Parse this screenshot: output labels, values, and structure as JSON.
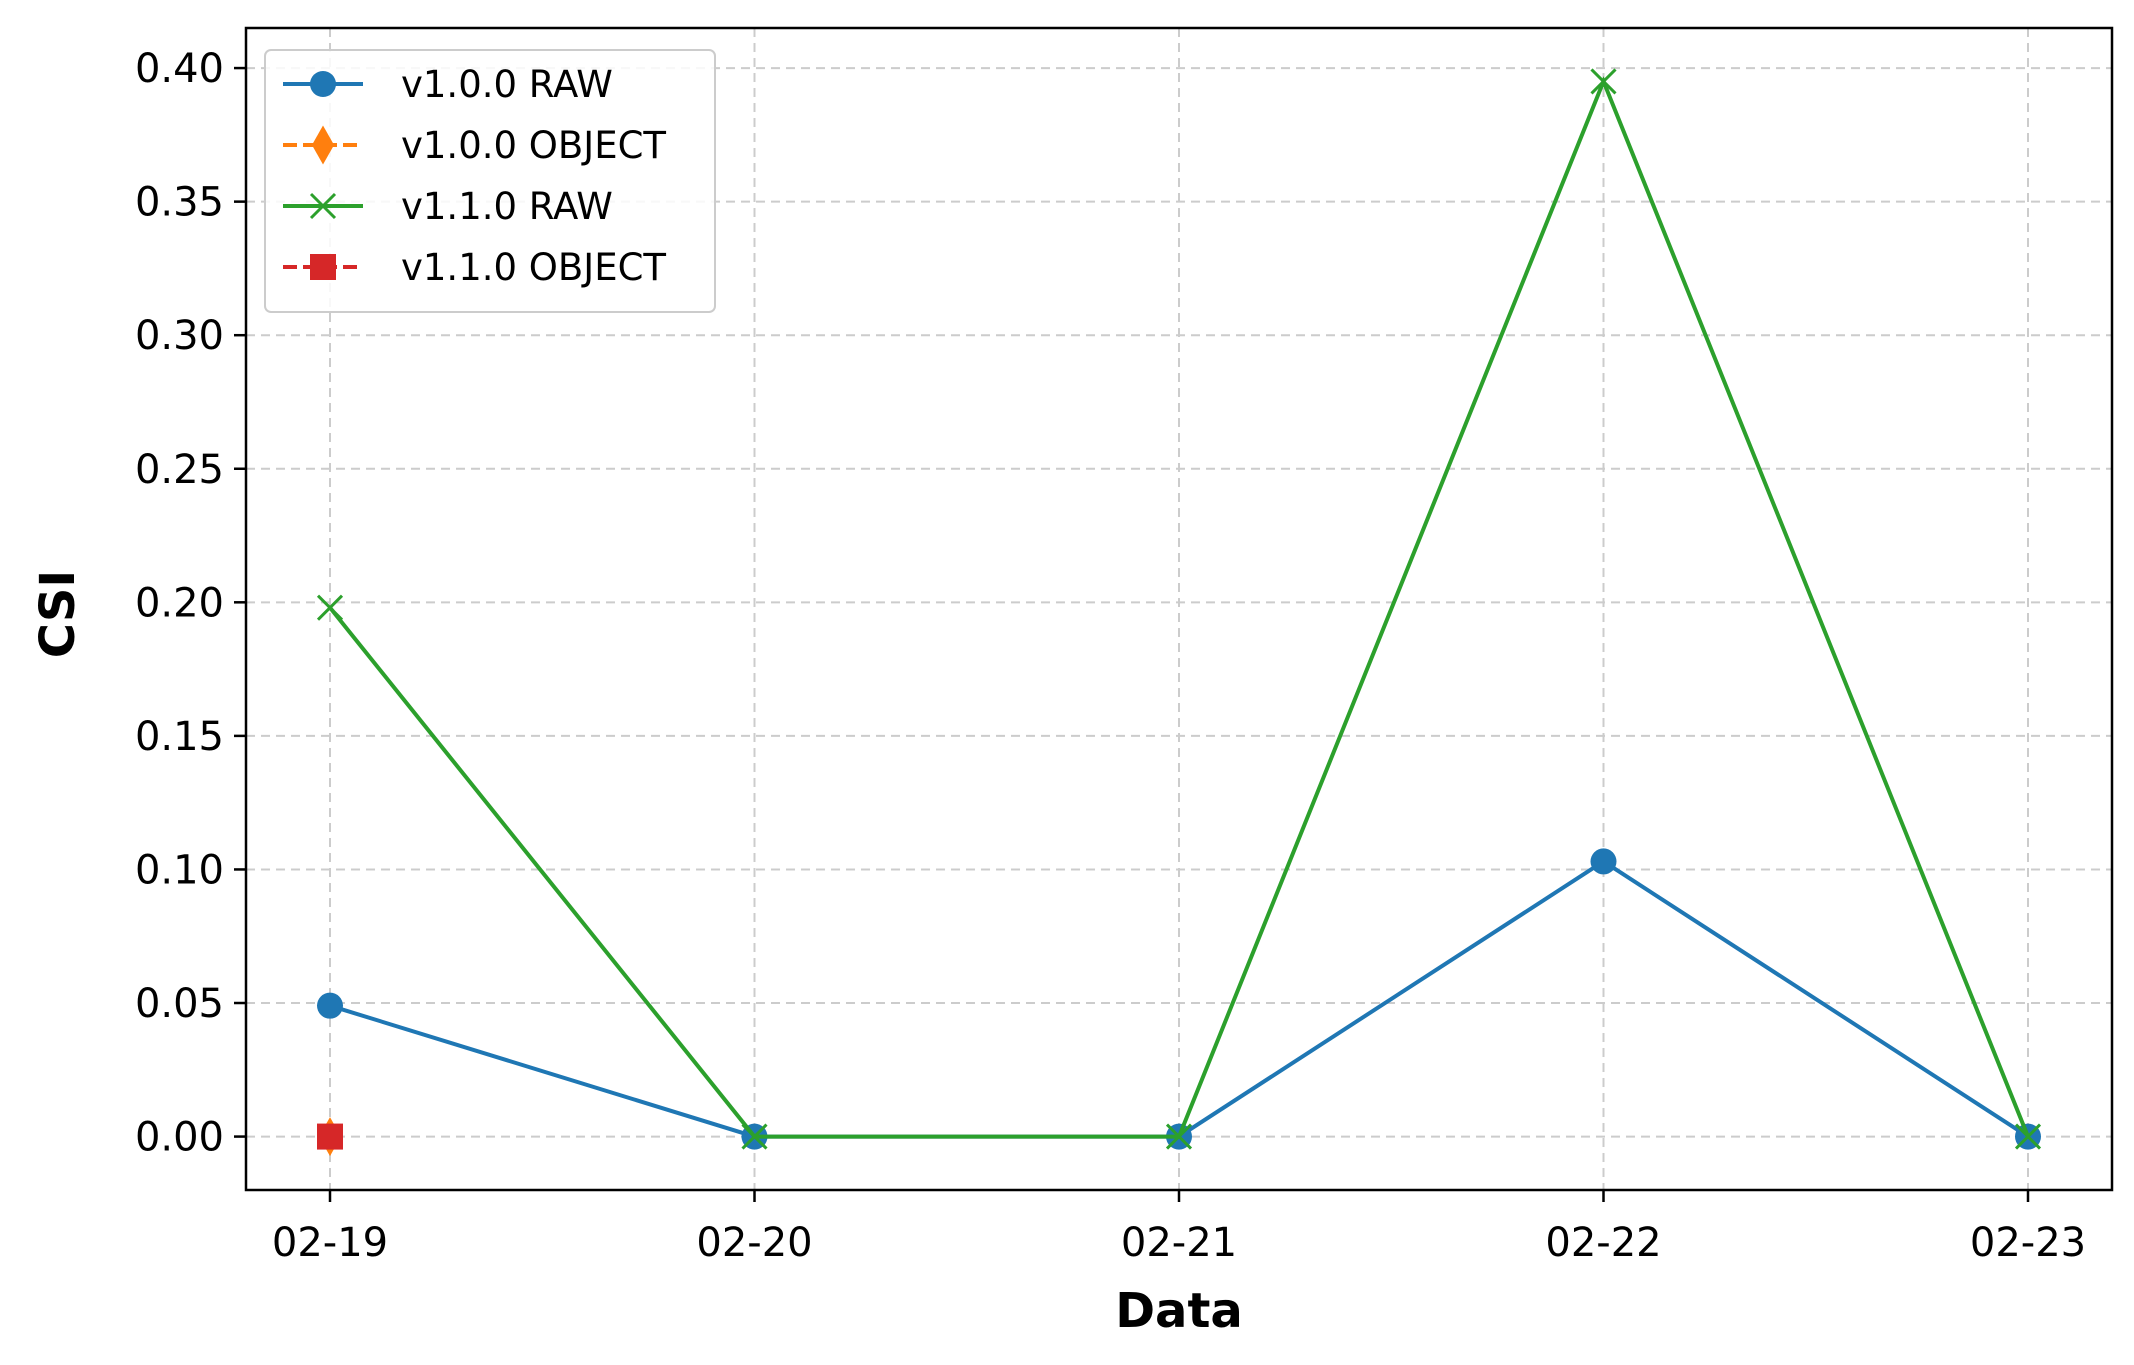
{
  "chart_data": {
    "type": "line",
    "title": "",
    "xlabel": "Data",
    "ylabel": "CSI",
    "categories": [
      "02-19",
      "02-20",
      "02-21",
      "02-22",
      "02-23"
    ],
    "ylim": [
      -0.02,
      0.415
    ],
    "yticks": [
      0.0,
      0.05,
      0.1,
      0.15,
      0.2,
      0.25,
      0.3,
      0.35,
      0.4
    ],
    "ytick_labels": [
      "0.00",
      "0.05",
      "0.10",
      "0.15",
      "0.20",
      "0.25",
      "0.30",
      "0.35",
      "0.40"
    ],
    "grid": true,
    "legend_position": "top-left",
    "series": [
      {
        "name": "v1.0.0 RAW",
        "values": [
          0.049,
          0.0,
          0.0,
          0.103,
          0.0
        ],
        "color": "#1f77b4",
        "marker": "circle",
        "linestyle": "solid"
      },
      {
        "name": "v1.0.0 OBJECT",
        "values": [
          0.0,
          null,
          null,
          null,
          null
        ],
        "color": "#ff7f0e",
        "marker": "diamond",
        "linestyle": "dashed"
      },
      {
        "name": "v1.1.0 RAW",
        "values": [
          0.198,
          0.0,
          0.0,
          0.395,
          0.0
        ],
        "color": "#2ca02c",
        "marker": "x",
        "linestyle": "solid"
      },
      {
        "name": "v1.1.0 OBJECT",
        "values": [
          0.0,
          null,
          null,
          null,
          null
        ],
        "color": "#d62728",
        "marker": "square",
        "linestyle": "dashed"
      }
    ]
  }
}
